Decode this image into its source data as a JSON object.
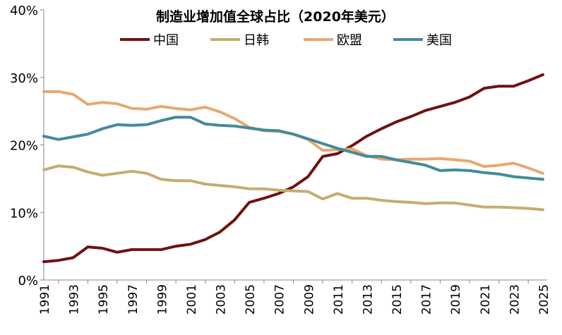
{
  "chart_data": {
    "type": "line",
    "title": "制造业增加值全球占比（2020年美元）",
    "xlabel": "",
    "ylabel": "",
    "ylim": [
      0,
      40
    ],
    "y_ticks": [
      "0%",
      "10%",
      "20%",
      "30%",
      "40%"
    ],
    "y_tick_values": [
      0,
      10,
      20,
      30,
      40
    ],
    "x_tick_labels": [
      "1991",
      "1993",
      "1995",
      "1997",
      "1999",
      "2001",
      "2003",
      "2005",
      "2007",
      "2009",
      "2011",
      "2013",
      "2015",
      "2017",
      "2019",
      "2021",
      "2023",
      "2025"
    ],
    "grid": false,
    "legend_placement": "top",
    "x": [
      1991,
      1992,
      1993,
      1994,
      1995,
      1996,
      1997,
      1998,
      1999,
      2000,
      2001,
      2002,
      2003,
      2004,
      2005,
      2006,
      2007,
      2008,
      2009,
      2010,
      2011,
      2012,
      2013,
      2014,
      2015,
      2016,
      2017,
      2018,
      2019,
      2020,
      2021,
      2022,
      2023,
      2024,
      2025
    ],
    "series": [
      {
        "name": "中国",
        "color": "#6e1212",
        "values": [
          2.7,
          2.9,
          3.3,
          4.9,
          4.7,
          4.1,
          4.5,
          4.5,
          4.5,
          5.0,
          5.3,
          6.0,
          7.1,
          8.9,
          11.5,
          12.1,
          12.8,
          13.8,
          15.3,
          18.3,
          18.7,
          19.9,
          21.3,
          22.4,
          23.4,
          24.2,
          25.1,
          25.7,
          26.3,
          27.1,
          28.4,
          28.7,
          28.7,
          29.5,
          30.4
        ]
      },
      {
        "name": "日韩",
        "color": "#c6ad6e",
        "values": [
          16.3,
          16.9,
          16.7,
          16.0,
          15.5,
          15.8,
          16.1,
          15.8,
          14.9,
          14.7,
          14.7,
          14.2,
          14.0,
          13.8,
          13.5,
          13.5,
          13.3,
          13.2,
          13.1,
          12.0,
          12.8,
          12.1,
          12.1,
          11.8,
          11.6,
          11.5,
          11.3,
          11.4,
          11.4,
          11.1,
          10.8,
          10.8,
          10.7,
          10.6,
          10.4
        ]
      },
      {
        "name": "欧盟",
        "color": "#e8a870",
        "values": [
          27.9,
          27.9,
          27.5,
          26.0,
          26.3,
          26.1,
          25.4,
          25.3,
          25.7,
          25.4,
          25.2,
          25.6,
          24.9,
          23.9,
          22.6,
          22.1,
          22.0,
          21.6,
          20.8,
          19.2,
          19.3,
          19.4,
          18.4,
          17.9,
          17.8,
          17.9,
          17.9,
          18.0,
          17.8,
          17.6,
          16.8,
          17.0,
          17.3,
          16.6,
          15.8
        ]
      },
      {
        "name": "美国",
        "color": "#428b9a",
        "values": [
          21.3,
          20.8,
          21.2,
          21.6,
          22.4,
          23.0,
          22.9,
          23.0,
          23.6,
          24.1,
          24.1,
          23.1,
          22.9,
          22.8,
          22.5,
          22.2,
          22.1,
          21.6,
          20.9,
          20.2,
          19.5,
          18.9,
          18.3,
          18.3,
          17.8,
          17.4,
          17.0,
          16.2,
          16.3,
          16.2,
          15.9,
          15.7,
          15.3,
          15.1,
          14.9
        ]
      }
    ]
  }
}
